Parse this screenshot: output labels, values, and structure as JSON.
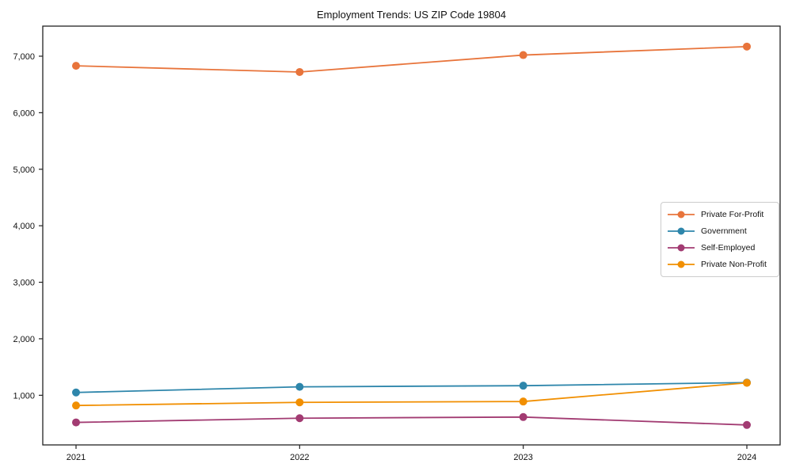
{
  "chart_data": {
    "type": "line",
    "title": "Employment Trends: US ZIP Code 19804",
    "categories": [
      "2021",
      "2022",
      "2023",
      "2024"
    ],
    "series": [
      {
        "name": "Private For-Profit",
        "color": "#E8743B",
        "values": [
          6830,
          6720,
          7020,
          7170
        ]
      },
      {
        "name": "Government",
        "color": "#2E86AB",
        "values": [
          1050,
          1150,
          1170,
          1225
        ]
      },
      {
        "name": "Self-Employed",
        "color": "#A23B72",
        "values": [
          520,
          595,
          615,
          475
        ]
      },
      {
        "name": "Private Non-Profit",
        "color": "#F18F01",
        "values": [
          820,
          875,
          890,
          1220
        ]
      }
    ],
    "xlabel": "",
    "ylabel": "",
    "ylim": [
      122,
      7532
    ],
    "yticks": [
      1000,
      2000,
      3000,
      4000,
      5000,
      6000,
      7000
    ],
    "ytick_labels": [
      "1,000",
      "2,000",
      "3,000",
      "4,000",
      "5,000",
      "6,000",
      "7,000"
    ],
    "grid": false,
    "legend_position": "center-right",
    "marker": "circle"
  },
  "colors": {
    "axis": "#222222",
    "text": "#111111",
    "legend_border": "#cccccc",
    "background": "#ffffff"
  }
}
